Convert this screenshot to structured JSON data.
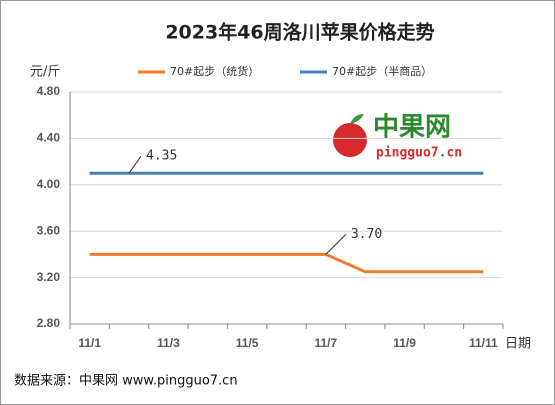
{
  "chart_data": {
    "type": "line",
    "title": "2023年46周洛川苹果价格走势",
    "y_label": "元/斤",
    "x_label": "日期",
    "categories": [
      "11/1",
      null,
      "11/3",
      null,
      "11/5",
      null,
      "11/7",
      null,
      "11/9",
      null,
      "11/11"
    ],
    "series": [
      {
        "name": "70#起步（统货）",
        "color": "#ed7d31",
        "values": [
          3.4,
          3.4,
          3.4,
          3.4,
          3.4,
          3.4,
          3.4,
          3.25,
          3.25,
          3.25,
          3.25
        ]
      },
      {
        "name": "70#起步（半商品）",
        "color": "#4a7ebb",
        "values": [
          4.1,
          4.1,
          4.1,
          4.1,
          4.1,
          4.1,
          4.1,
          4.1,
          4.1,
          4.1,
          4.1
        ]
      }
    ],
    "annotations": [
      {
        "text": "4.35"
      },
      {
        "text": "3.70"
      }
    ],
    "ylim": [
      2.8,
      4.8
    ],
    "yticks": [
      {
        "value": 2.8,
        "label": "2.80"
      },
      {
        "value": 3.2,
        "label": "3.20"
      },
      {
        "value": 3.6,
        "label": "3.60"
      },
      {
        "value": 4.0,
        "label": "4.00"
      },
      {
        "value": 4.4,
        "label": "4.40"
      },
      {
        "value": 4.8,
        "label": "4.80"
      }
    ],
    "grid": true,
    "watermark": {
      "name": "中果网",
      "url": "pingguo7.cn"
    },
    "source": "数据来源：中果网 www.pingguo7.cn"
  }
}
